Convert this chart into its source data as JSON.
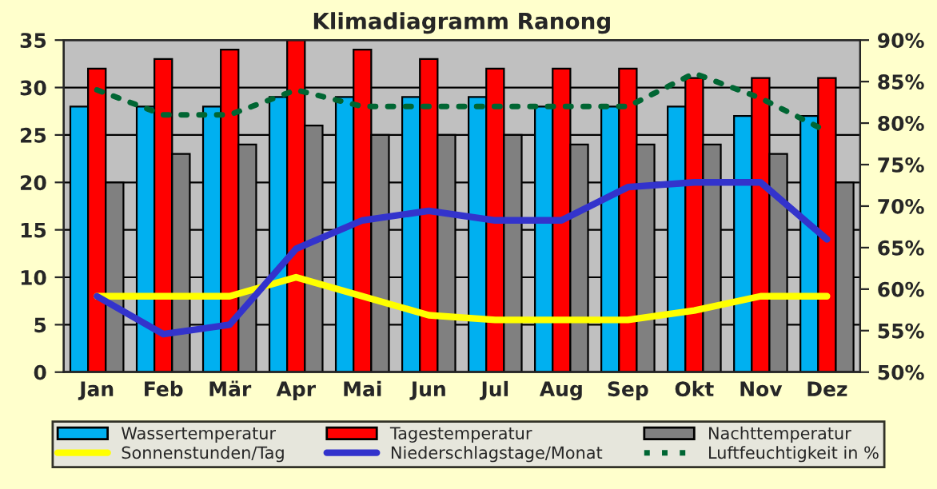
{
  "chart_data": {
    "type": "bar",
    "title": "Klimadiagramm Ranong",
    "categories": [
      "Jan",
      "Feb",
      "Mär",
      "Apr",
      "Mai",
      "Jun",
      "Jul",
      "Aug",
      "Sep",
      "Okt",
      "Nov",
      "Dez"
    ],
    "series": [
      {
        "name": "Wassertemperatur",
        "color": "#00b0f0",
        "values": [
          28,
          28,
          28,
          29,
          29,
          29,
          29,
          28,
          28,
          28,
          27,
          27
        ]
      },
      {
        "name": "Tagestemperatur",
        "color": "#ff0000",
        "values": [
          32,
          33,
          34,
          35,
          34,
          33,
          32,
          32,
          32,
          31,
          31,
          31
        ]
      },
      {
        "name": "Nachttemperatur",
        "color": "#808080",
        "values": [
          20,
          23,
          24,
          26,
          25,
          25,
          25,
          24,
          24,
          24,
          23,
          20
        ]
      },
      {
        "name": "Sonnenstunden/Tag",
        "type": "line",
        "color": "#ffff00",
        "line_style": "solid",
        "values": [
          8,
          8,
          8,
          10,
          8,
          6,
          5.5,
          5.5,
          5.5,
          6.5,
          8,
          8
        ]
      },
      {
        "name": "Niederschlagstage/Monat",
        "type": "line",
        "color": "#3333cc",
        "line_style": "solid",
        "values": [
          8,
          4,
          5,
          13,
          16,
          17,
          16,
          16,
          19.5,
          20,
          20,
          14
        ]
      },
      {
        "name": "Luftfeuchtigkeit in %",
        "type": "line",
        "color": "#006633",
        "line_style": "dotted",
        "axis": "y2",
        "values": [
          84,
          81,
          81,
          84,
          82,
          82,
          82,
          82,
          82,
          86,
          83,
          79
        ]
      }
    ],
    "ylim": [
      0,
      35
    ],
    "yticks": [
      0,
      5,
      10,
      15,
      20,
      25,
      30,
      35
    ],
    "y2lim": [
      50,
      90
    ],
    "y2ticks": [
      {
        "value": 50,
        "label": "50%"
      },
      {
        "value": 55,
        "label": "55%"
      },
      {
        "value": 60,
        "label": "60%"
      },
      {
        "value": 65,
        "label": "65%"
      },
      {
        "value": 70,
        "label": "70%"
      },
      {
        "value": 75,
        "label": "75%"
      },
      {
        "value": 80,
        "label": "80%"
      },
      {
        "value": 85,
        "label": "85%"
      },
      {
        "value": 90,
        "label": "90%"
      }
    ],
    "grid": "y",
    "legend": "bottom",
    "marker": "none"
  }
}
